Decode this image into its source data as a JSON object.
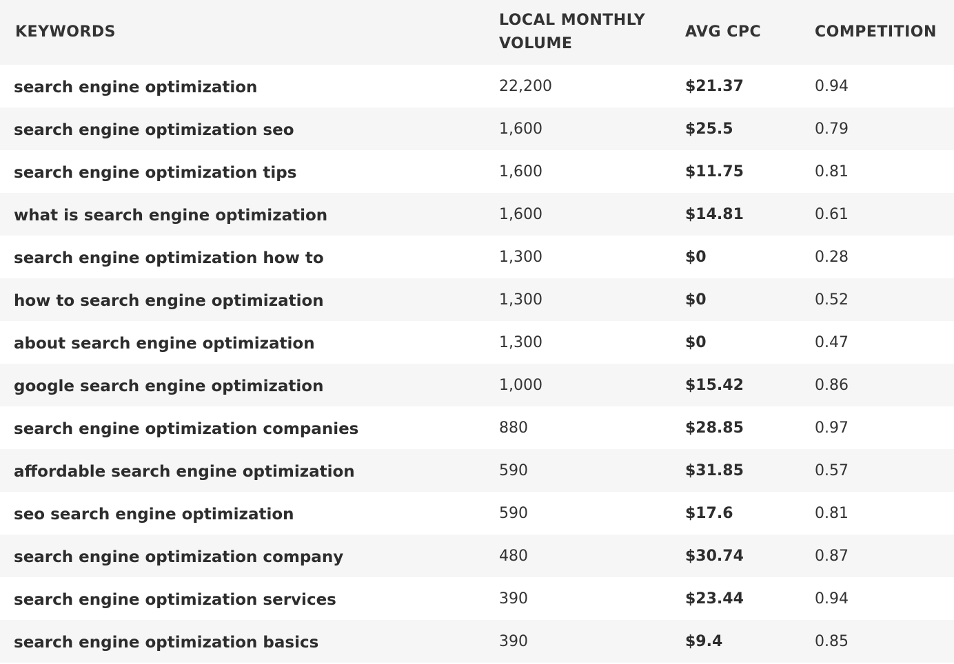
{
  "table": {
    "headers": {
      "keywords": "KEYWORDS",
      "volume": "LOCAL MONTHLY VOLUME",
      "cpc": "AVG CPC",
      "competition": "COMPETITION"
    },
    "rows": [
      {
        "keyword": "search engine optimization",
        "volume": "22,200",
        "cpc": "$21.37",
        "competition": "0.94"
      },
      {
        "keyword": "search engine optimization seo",
        "volume": "1,600",
        "cpc": "$25.5",
        "competition": "0.79"
      },
      {
        "keyword": "search engine optimization tips",
        "volume": "1,600",
        "cpc": "$11.75",
        "competition": "0.81"
      },
      {
        "keyword": "what is search engine optimization",
        "volume": "1,600",
        "cpc": "$14.81",
        "competition": "0.61"
      },
      {
        "keyword": "search engine optimization how to",
        "volume": "1,300",
        "cpc": "$0",
        "competition": "0.28"
      },
      {
        "keyword": "how to search engine optimization",
        "volume": "1,300",
        "cpc": "$0",
        "competition": "0.52"
      },
      {
        "keyword": "about search engine optimization",
        "volume": "1,300",
        "cpc": "$0",
        "competition": "0.47"
      },
      {
        "keyword": "google search engine optimization",
        "volume": "1,000",
        "cpc": "$15.42",
        "competition": "0.86"
      },
      {
        "keyword": "search engine optimization companies",
        "volume": "880",
        "cpc": "$28.85",
        "competition": "0.97"
      },
      {
        "keyword": "affordable search engine optimization",
        "volume": "590",
        "cpc": "$31.85",
        "competition": "0.57"
      },
      {
        "keyword": "seo search engine optimization",
        "volume": "590",
        "cpc": "$17.6",
        "competition": "0.81"
      },
      {
        "keyword": "search engine optimization company",
        "volume": "480",
        "cpc": "$30.74",
        "competition": "0.87"
      },
      {
        "keyword": "search engine optimization services",
        "volume": "390",
        "cpc": "$23.44",
        "competition": "0.94"
      },
      {
        "keyword": "search engine optimization basics",
        "volume": "390",
        "cpc": "$9.4",
        "competition": "0.85"
      }
    ]
  },
  "colors": {
    "header_bg": "#f5f5f5",
    "row_alt_bg": "#f6f6f6",
    "row_bg": "#ffffff",
    "text": "#2d2d2d"
  }
}
